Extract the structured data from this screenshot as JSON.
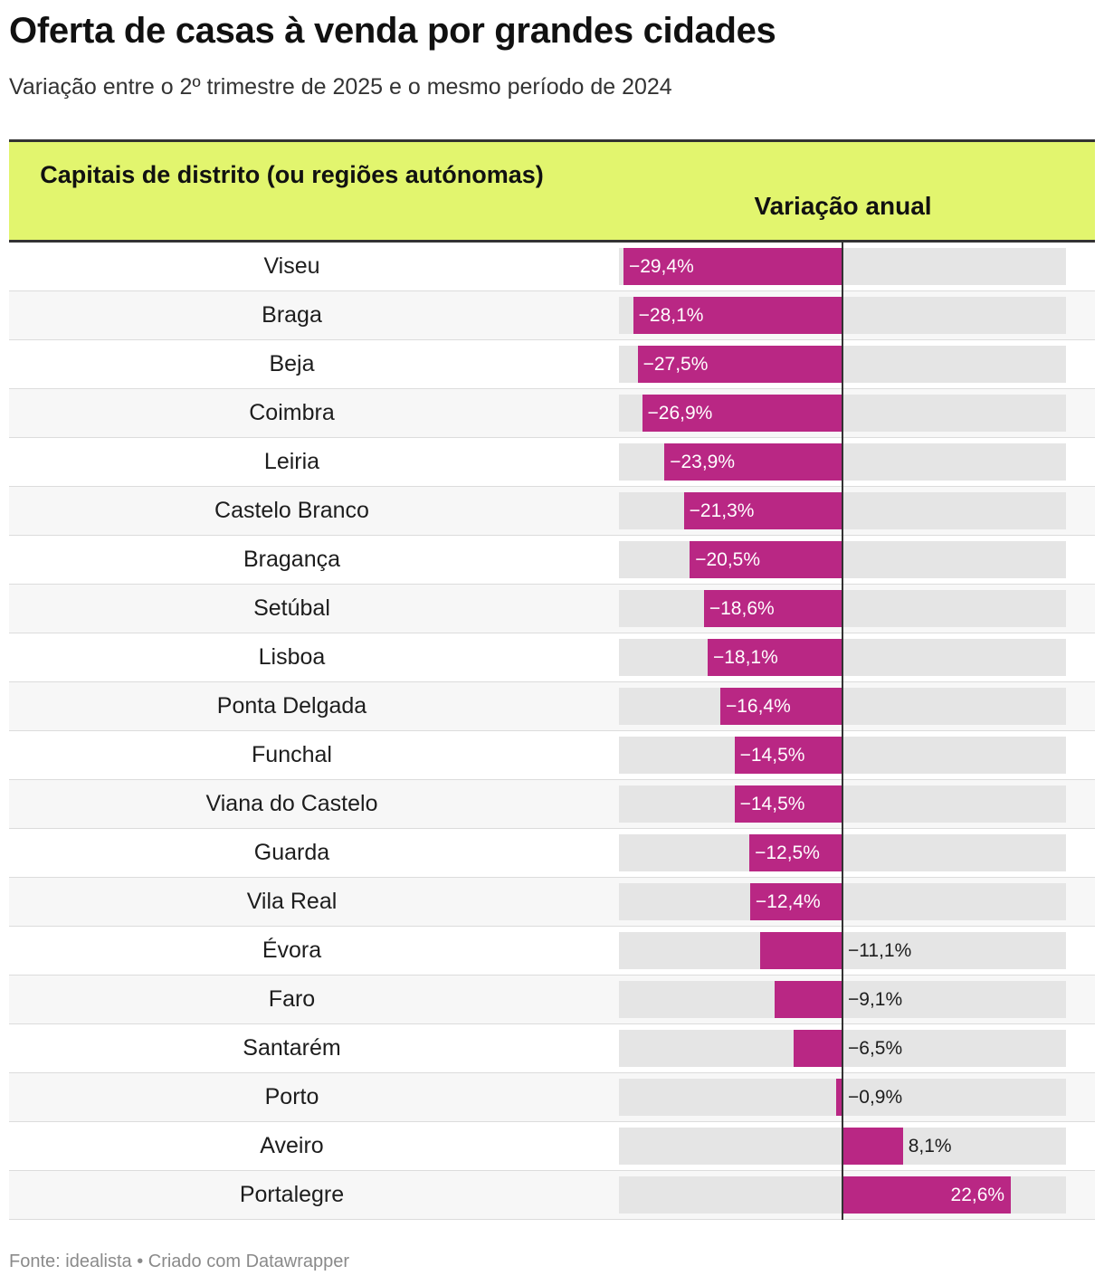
{
  "header": {
    "title": "Oferta de casas à venda por grandes cidades",
    "subtitle": "Variação entre o 2º trimestre de 2025 e o mesmo período de 2024"
  },
  "table": {
    "col_city": "Capitais de distrito (ou regiões autónomas)",
    "col_variation": "Variação anual"
  },
  "footer": {
    "source": "Fonte: idealista • Criado com Datawrapper"
  },
  "colors": {
    "bar": "#b92784",
    "header_bg": "#e2f56e",
    "track": "#e5e5e5"
  },
  "chart_data": {
    "type": "bar",
    "orientation": "horizontal",
    "title": "Oferta de casas à venda por grandes cidades",
    "subtitle": "Variação entre o 2º trimestre de 2025 e o mesmo período de 2024",
    "xlabel": "Variação anual",
    "ylabel": "Capitais de distrito (ou regiões autónomas)",
    "xlim": [
      -30,
      30
    ],
    "unit": "%",
    "categories": [
      "Viseu",
      "Braga",
      "Beja",
      "Coimbra",
      "Leiria",
      "Castelo Branco",
      "Bragança",
      "Setúbal",
      "Lisboa",
      "Ponta Delgada",
      "Funchal",
      "Viana do Castelo",
      "Guarda",
      "Vila Real",
      "Évora",
      "Faro",
      "Santarém",
      "Porto",
      "Aveiro",
      "Portalegre"
    ],
    "values": [
      -29.4,
      -28.1,
      -27.5,
      -26.9,
      -23.9,
      -21.3,
      -20.5,
      -18.6,
      -18.1,
      -16.4,
      -14.5,
      -14.5,
      -12.5,
      -12.4,
      -11.1,
      -9.1,
      -6.5,
      -0.9,
      8.1,
      22.6
    ],
    "value_labels": [
      "−29,4%",
      "−28,1%",
      "−27,5%",
      "−26,9%",
      "−23,9%",
      "−21,3%",
      "−20,5%",
      "−18,6%",
      "−18,1%",
      "−16,4%",
      "−14,5%",
      "−14,5%",
      "−12,5%",
      "−12,4%",
      "−11,1%",
      "−9,1%",
      "−6,5%",
      "−0,9%",
      "8,1%",
      "22,6%"
    ]
  }
}
